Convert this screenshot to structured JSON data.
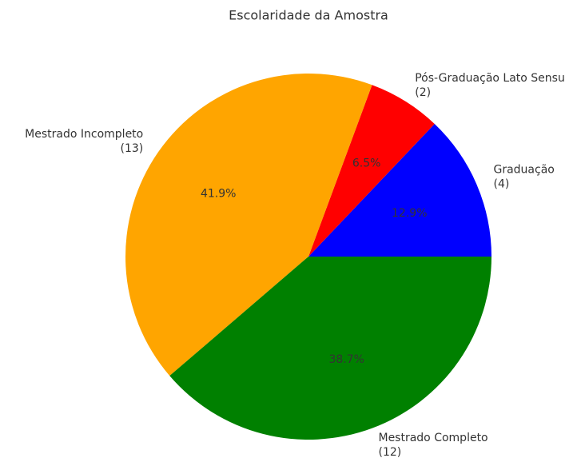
{
  "chart_data": {
    "type": "pie",
    "title": "Escolaridade da Amostra",
    "categories": [
      "Graduação",
      "Pós-Graduação Lato Sensu",
      "Mestrado Incompleto",
      "Mestrado Completo"
    ],
    "values": [
      4,
      2,
      13,
      12
    ],
    "value_labels": [
      "(4)",
      "(2)",
      "(13)",
      "(12)"
    ],
    "percent_labels": [
      "12.9%",
      "6.5%",
      "41.9%",
      "38.7%"
    ],
    "colors": [
      "#0000ff",
      "#ff0000",
      "#ffa500",
      "#008000"
    ]
  }
}
